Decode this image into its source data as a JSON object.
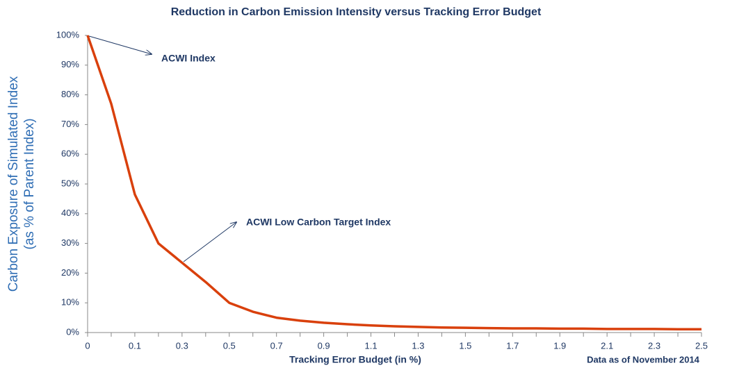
{
  "chart_data": {
    "type": "line",
    "title": "Reduction in Carbon Emission Intensity versus Tracking Error Budget",
    "x_label": "Tracking Error Budget (in %)",
    "y_label": [
      "Carbon Exposure of Simulated Index",
      "(as % of Parent Index)"
    ],
    "footnote": "Data as of November 2014",
    "annotations": [
      {
        "text": "ACWI Index"
      },
      {
        "text": "ACWI Low Carbon Target Index"
      }
    ],
    "categories": [
      0,
      null,
      0.1,
      null,
      0.3,
      null,
      0.5,
      null,
      0.7,
      null,
      0.9,
      null,
      1.1,
      null,
      1.3,
      null,
      1.5,
      null,
      1.7,
      null,
      1.9,
      null,
      2.1,
      null,
      2.3,
      null,
      2.5
    ],
    "series": [
      {
        "name": "ACWI Low Carbon Target Index",
        "color": "#d9400c",
        "values": [
          100,
          77,
          46.5,
          30,
          23.5,
          17,
          10,
          7,
          5,
          4,
          3.3,
          2.8,
          2.4,
          2.1,
          1.9,
          1.7,
          1.6,
          1.5,
          1.4,
          1.4,
          1.3,
          1.3,
          1.2,
          1.2,
          1.2,
          1.1,
          1.1
        ]
      }
    ],
    "ylim": [
      0,
      100
    ],
    "yticks": [
      {
        "value": 0,
        "label": "0%"
      },
      {
        "value": 10,
        "label": "10%"
      },
      {
        "value": 20,
        "label": "20%"
      },
      {
        "value": 30,
        "label": "30%"
      },
      {
        "value": 40,
        "label": "40%"
      },
      {
        "value": 50,
        "label": "50%"
      },
      {
        "value": 60,
        "label": "60%"
      },
      {
        "value": 70,
        "label": "70%"
      },
      {
        "value": 80,
        "label": "80%"
      },
      {
        "value": 90,
        "label": "90%"
      },
      {
        "value": 100,
        "label": "100%"
      }
    ],
    "grid": false
  }
}
